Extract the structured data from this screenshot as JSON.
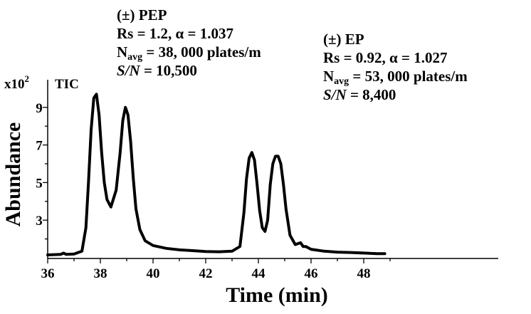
{
  "chart_data": {
    "type": "line",
    "ylabel": "Abundance",
    "xlabel": "Time (min)",
    "y_multiplier_label": "x10",
    "y_multiplier_exp": "2",
    "trace_label": "TIC",
    "xlim": [
      36,
      49
    ],
    "ylim": [
      1,
      10
    ],
    "x_ticks": [
      "36",
      "38",
      "40",
      "42",
      "44",
      "46",
      "48"
    ],
    "y_ticks": [
      "3",
      "5",
      "7",
      "9"
    ],
    "grid": false,
    "series": [
      {
        "x": [
          36.0,
          36.5,
          36.6,
          36.7,
          37.0,
          37.3,
          37.45,
          37.55,
          37.65,
          37.75,
          37.85,
          37.95,
          38.05,
          38.15,
          38.25,
          38.4,
          38.6,
          38.75,
          38.85,
          38.95,
          39.05,
          39.15,
          39.25,
          39.35,
          39.5,
          39.7,
          40.0,
          40.5,
          41.0,
          41.5,
          42.0,
          42.5,
          43.0,
          43.3,
          43.45,
          43.55,
          43.65,
          43.75,
          43.85,
          43.95,
          44.05,
          44.15,
          44.25,
          44.35,
          44.45,
          44.55,
          44.65,
          44.75,
          44.85,
          44.95,
          45.05,
          45.2,
          45.4,
          45.6,
          45.7,
          45.8,
          46.0,
          46.5,
          47.0,
          47.5,
          48.0,
          48.5,
          48.8
        ],
        "y": [
          1.15,
          1.18,
          1.25,
          1.18,
          1.2,
          1.35,
          2.6,
          5.0,
          7.8,
          9.5,
          9.7,
          8.6,
          6.6,
          5.0,
          4.1,
          3.7,
          4.6,
          6.6,
          8.3,
          9.0,
          8.6,
          7.2,
          5.2,
          3.6,
          2.5,
          1.9,
          1.65,
          1.5,
          1.42,
          1.38,
          1.33,
          1.32,
          1.35,
          1.6,
          3.4,
          5.2,
          6.3,
          6.6,
          6.2,
          4.9,
          3.5,
          2.6,
          2.4,
          3.0,
          4.9,
          6.0,
          6.4,
          6.4,
          6.0,
          4.9,
          3.6,
          2.2,
          1.7,
          1.8,
          1.6,
          1.6,
          1.45,
          1.35,
          1.3,
          1.28,
          1.25,
          1.22,
          1.22
        ]
      }
    ],
    "annotations": {
      "pep": {
        "name": "(±) PEP",
        "rs_alpha": "Rs = 1.2,  α = 1.037",
        "n_prefix": "N",
        "n_sub": "avg",
        "n_value": " = 38, 000  plates/m",
        "sn_prefix": "S/N",
        "sn_value": " = 10,500"
      },
      "ep": {
        "name": "(±) EP",
        "rs_alpha": "Rs = 0.92,  α = 1.027",
        "n_prefix": "N",
        "n_sub": "avg",
        "n_value": " = 53, 000  plates/m",
        "sn_prefix": "S/N",
        "sn_value": " = 8,400"
      }
    }
  }
}
